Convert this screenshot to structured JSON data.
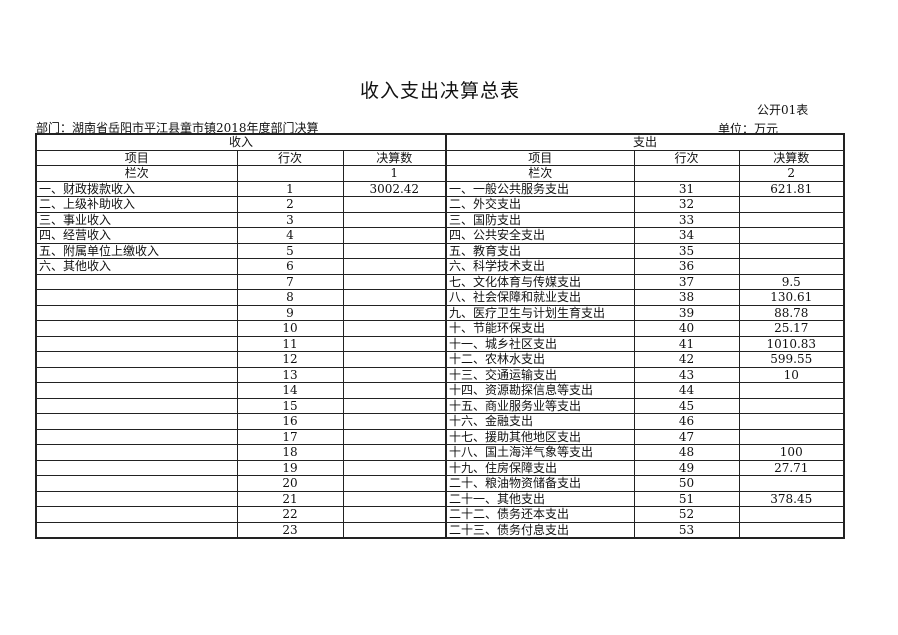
{
  "title": "收入支出决算总表",
  "form_code": "公开01表",
  "department": "部门：湖南省岳阳市平江县童市镇2018年度部门决算",
  "unit": "单位：万元",
  "income": {
    "section": "收入",
    "headers": [
      "项目",
      "行次",
      "决算数"
    ],
    "column_label": "栏次",
    "column_number": "1",
    "rows": [
      {
        "item": "一、财政拨款收入",
        "line": "1",
        "amount": "3002.42"
      },
      {
        "item": "二、上级补助收入",
        "line": "2",
        "amount": ""
      },
      {
        "item": "三、事业收入",
        "line": "3",
        "amount": ""
      },
      {
        "item": "四、经营收入",
        "line": "4",
        "amount": ""
      },
      {
        "item": "五、附属单位上缴收入",
        "line": "5",
        "amount": ""
      },
      {
        "item": "六、其他收入",
        "line": "6",
        "amount": ""
      },
      {
        "item": "",
        "line": "7",
        "amount": ""
      },
      {
        "item": "",
        "line": "8",
        "amount": ""
      },
      {
        "item": "",
        "line": "9",
        "amount": ""
      },
      {
        "item": "",
        "line": "10",
        "amount": ""
      },
      {
        "item": "",
        "line": "11",
        "amount": ""
      },
      {
        "item": "",
        "line": "12",
        "amount": ""
      },
      {
        "item": "",
        "line": "13",
        "amount": ""
      },
      {
        "item": "",
        "line": "14",
        "amount": ""
      },
      {
        "item": "",
        "line": "15",
        "amount": ""
      },
      {
        "item": "",
        "line": "16",
        "amount": ""
      },
      {
        "item": "",
        "line": "17",
        "amount": ""
      },
      {
        "item": "",
        "line": "18",
        "amount": ""
      },
      {
        "item": "",
        "line": "19",
        "amount": ""
      },
      {
        "item": "",
        "line": "20",
        "amount": ""
      },
      {
        "item": "",
        "line": "21",
        "amount": ""
      },
      {
        "item": "",
        "line": "22",
        "amount": ""
      },
      {
        "item": "",
        "line": "23",
        "amount": ""
      }
    ]
  },
  "expense": {
    "section": "支出",
    "headers": [
      "项目",
      "行次",
      "决算数"
    ],
    "column_label": "栏次",
    "column_number": "2",
    "rows": [
      {
        "item": "一、一般公共服务支出",
        "line": "31",
        "amount": "621.81"
      },
      {
        "item": "二、外交支出",
        "line": "32",
        "amount": ""
      },
      {
        "item": "三、国防支出",
        "line": "33",
        "amount": ""
      },
      {
        "item": "四、公共安全支出",
        "line": "34",
        "amount": ""
      },
      {
        "item": "五、教育支出",
        "line": "35",
        "amount": ""
      },
      {
        "item": "六、科学技术支出",
        "line": "36",
        "amount": ""
      },
      {
        "item": "七、文化体育与传媒支出",
        "line": "37",
        "amount": "9.5"
      },
      {
        "item": "八、社会保障和就业支出",
        "line": "38",
        "amount": "130.61"
      },
      {
        "item": "九、医疗卫生与计划生育支出",
        "line": "39",
        "amount": "88.78"
      },
      {
        "item": "十、节能环保支出",
        "line": "40",
        "amount": "25.17"
      },
      {
        "item": "十一、城乡社区支出",
        "line": "41",
        "amount": "1010.83"
      },
      {
        "item": "十二、农林水支出",
        "line": "42",
        "amount": "599.55"
      },
      {
        "item": "十三、交通运输支出",
        "line": "43",
        "amount": "10"
      },
      {
        "item": "十四、资源勘探信息等支出",
        "line": "44",
        "amount": ""
      },
      {
        "item": "十五、商业服务业等支出",
        "line": "45",
        "amount": ""
      },
      {
        "item": "十六、金融支出",
        "line": "46",
        "amount": ""
      },
      {
        "item": "十七、援助其他地区支出",
        "line": "47",
        "amount": ""
      },
      {
        "item": "十八、国土海洋气象等支出",
        "line": "48",
        "amount": "100"
      },
      {
        "item": "十九、住房保障支出",
        "line": "49",
        "amount": "27.71"
      },
      {
        "item": "二十、粮油物资储备支出",
        "line": "50",
        "amount": ""
      },
      {
        "item": "二十一、其他支出",
        "line": "51",
        "amount": "378.45"
      },
      {
        "item": "二十二、债务还本支出",
        "line": "52",
        "amount": ""
      },
      {
        "item": "二十三、债务付息支出",
        "line": "53",
        "amount": ""
      }
    ]
  }
}
